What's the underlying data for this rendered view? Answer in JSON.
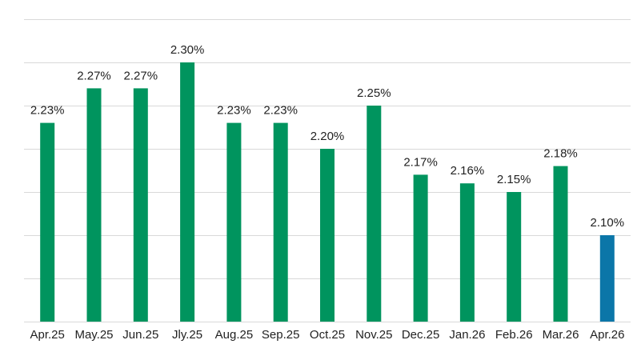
{
  "chart_data": {
    "type": "bar",
    "categories": [
      "Apr.25",
      "May.25",
      "Jun.25",
      "Jly.25",
      "Aug.25",
      "Sep.25",
      "Oct.25",
      "Nov.25",
      "Dec.25",
      "Jan.26",
      "Feb.26",
      "Mar.26",
      "Apr.26"
    ],
    "values": [
      2.23,
      2.27,
      2.27,
      2.3,
      2.23,
      2.23,
      2.2,
      2.25,
      2.17,
      2.16,
      2.15,
      2.18,
      2.1
    ],
    "value_labels": [
      "2.23%",
      "2.27%",
      "2.27%",
      "2.30%",
      "2.23%",
      "2.23%",
      "2.20%",
      "2.25%",
      "2.17%",
      "2.16%",
      "2.15%",
      "2.18%",
      "2.10%"
    ],
    "ylim": [
      2.0,
      2.35
    ],
    "gridlines": [
      2.0,
      2.05,
      2.1,
      2.15,
      2.2,
      2.25,
      2.3,
      2.35
    ],
    "grid": true,
    "colors": {
      "default": "#00945E",
      "highlight": "#0B76A8",
      "highlight_index": 12
    },
    "title": "",
    "xlabel": "",
    "ylabel": ""
  }
}
